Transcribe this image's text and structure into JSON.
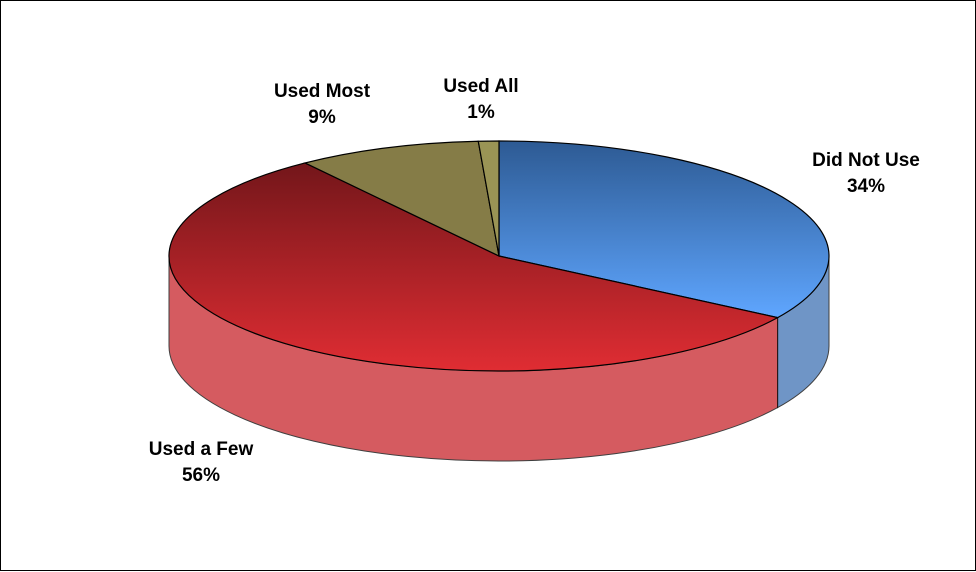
{
  "chart_data": {
    "type": "pie",
    "title": "",
    "series": [
      {
        "name": "",
        "slices": [
          {
            "label": "Did Not Use",
            "percent_label": "34%",
            "value": 34,
            "color": "#3f72b4"
          },
          {
            "label": "Used a Few",
            "percent_label": "56%",
            "value": 56,
            "color": "#c7252b"
          },
          {
            "label": "Used Most",
            "percent_label": "9%",
            "value": 9,
            "color": "#857c47"
          },
          {
            "label": "Used All",
            "percent_label": "1%",
            "value": 1,
            "color": "#9a9455"
          }
        ]
      }
    ],
    "legend": "none",
    "style": "3d-exploded-pie"
  }
}
